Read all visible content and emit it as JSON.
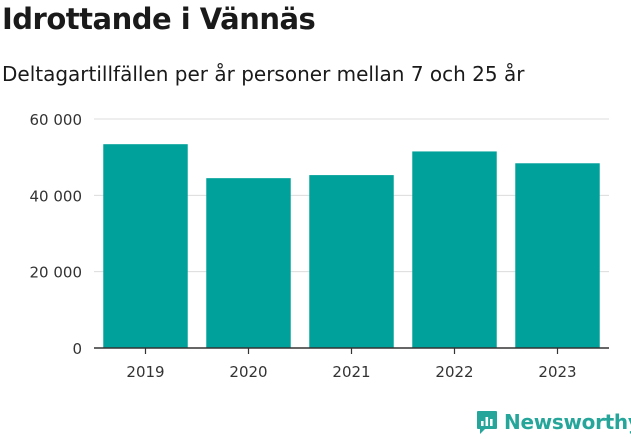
{
  "header": {
    "title": "Idrottande i Vännäs",
    "subtitle": "Deltagartillfällen per år personer mellan 7 och 25 år"
  },
  "brand": {
    "name": "Newsworthy",
    "icon": "bar-chart-logo-icon",
    "color": "#26a69a"
  },
  "chart_data": {
    "type": "bar",
    "categories": [
      "2019",
      "2020",
      "2021",
      "2022",
      "2023"
    ],
    "series": [
      {
        "values": [
          53400,
          44500,
          45300,
          51500,
          48400
        ]
      }
    ],
    "ylim": [
      0,
      60000
    ],
    "yticks": [
      0,
      20000,
      40000,
      60000
    ],
    "ytick_labels": [
      "0",
      "20 000",
      "40 000",
      "60 000"
    ],
    "bar_color": "#00a19a",
    "grid": true,
    "legend": "none"
  }
}
